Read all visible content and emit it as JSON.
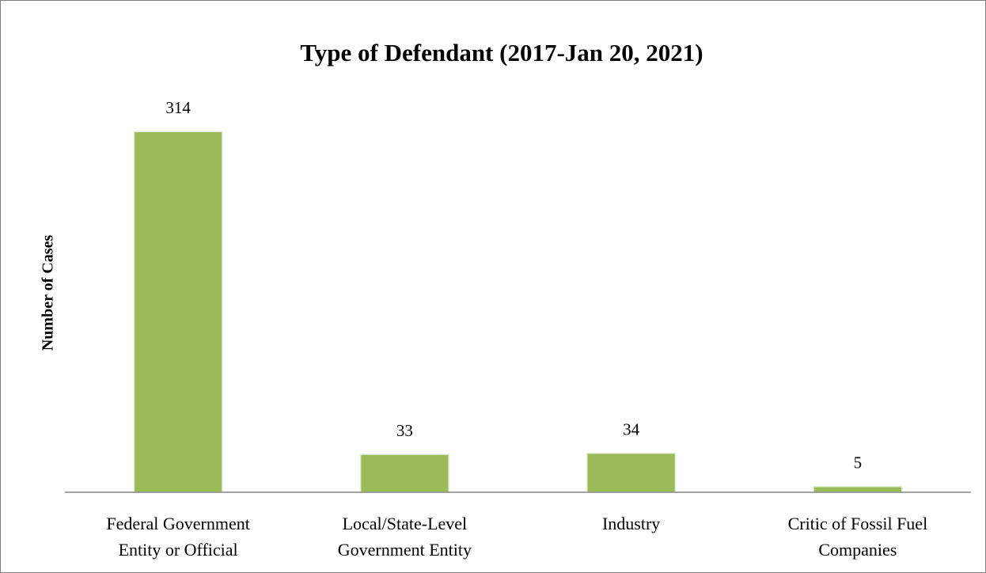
{
  "chart_data": {
    "type": "bar",
    "title": "Type of Defendant (2017-Jan 20, 2021)",
    "y_label": "Number of Cases",
    "categories": [
      "Federal Government Entity or Official",
      "Local/State-Level Government Entity",
      "Industry",
      "Critic of Fossil Fuel Companies"
    ],
    "values": [
      314,
      33,
      34,
      5
    ],
    "color": "#9bbb59",
    "ylim": [
      0,
      350
    ],
    "grid": false
  }
}
